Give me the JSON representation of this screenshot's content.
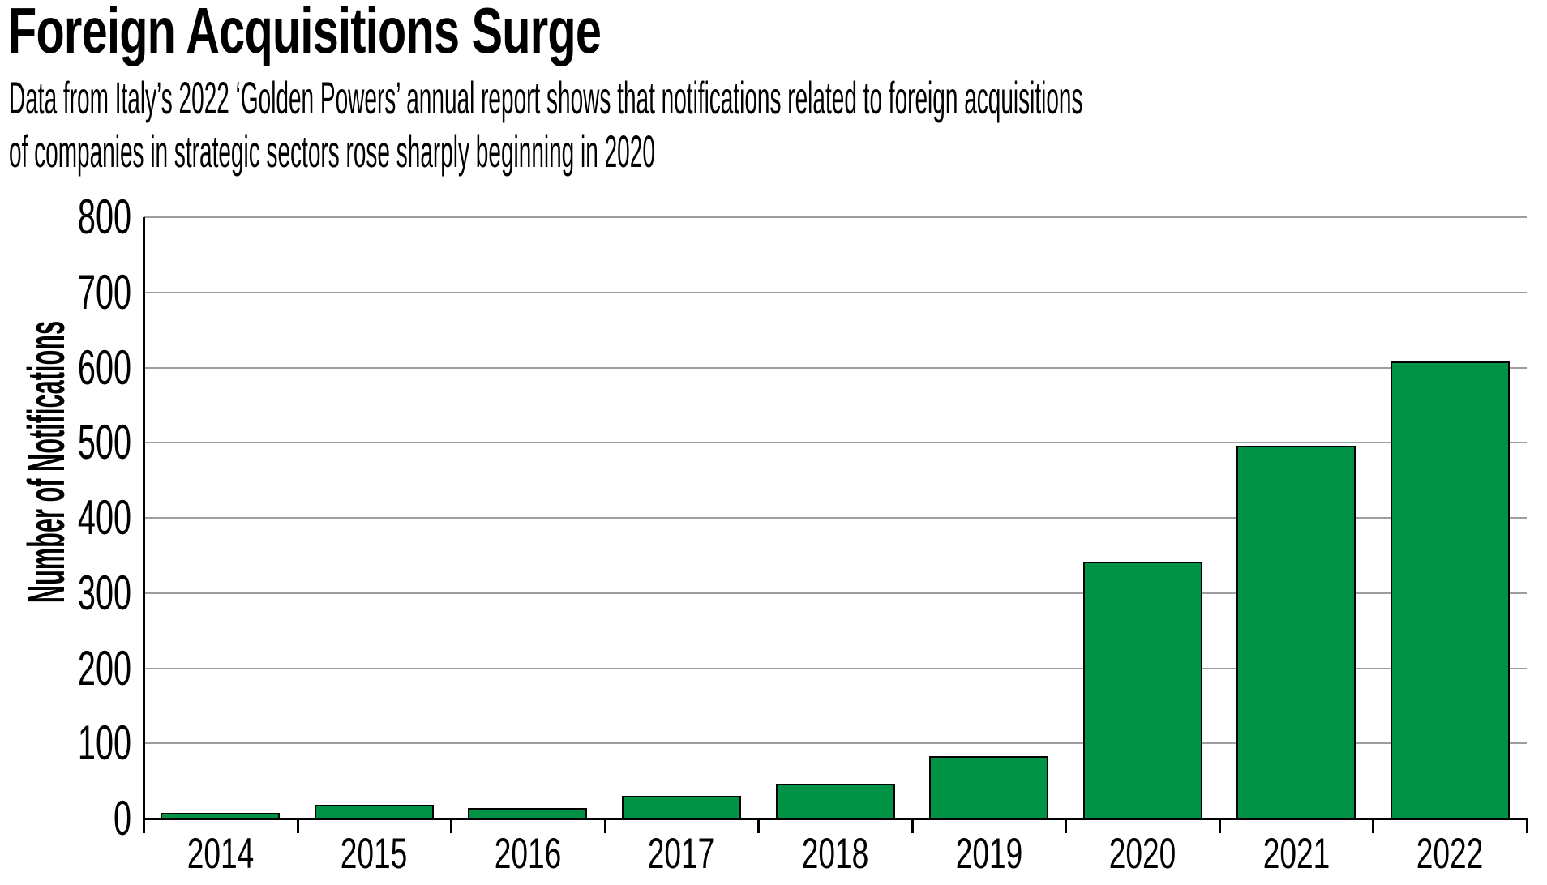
{
  "header": {
    "title": "Foreign Acquisitions Surge",
    "subtitle_lines": [
      "Data from Italy’s 2022 ‘Golden Powers’ annual report shows that notifications related to foreign acquisitions",
      "of companies in strategic sectors rose sharply beginning in 2020"
    ]
  },
  "chart_data": {
    "type": "bar",
    "title": "Foreign Acquisitions Surge",
    "subtitle": "Data from Italy’s 2022 ‘Golden Powers’ annual report shows that notifications related to foreign acquisitions of companies in strategic sectors rose sharply beginning in 2020",
    "categories": [
      "2014",
      "2015",
      "2016",
      "2017",
      "2018",
      "2019",
      "2020",
      "2021",
      "2022"
    ],
    "values": [
      8,
      18,
      14,
      30,
      46,
      83,
      342,
      496,
      608
    ],
    "xlabel": "",
    "ylabel": "Number of Notifications",
    "ylim": [
      0,
      800
    ],
    "yticks": [
      0,
      100,
      200,
      300,
      400,
      500,
      600,
      700,
      800
    ],
    "grid": "horizontal",
    "legend": "none",
    "colors": {
      "bar_fill": "#009245",
      "bar_border": "#000000",
      "gridline": "#9e9e9e",
      "axis": "#000000",
      "text": "#000000",
      "background": "#ffffff"
    }
  }
}
